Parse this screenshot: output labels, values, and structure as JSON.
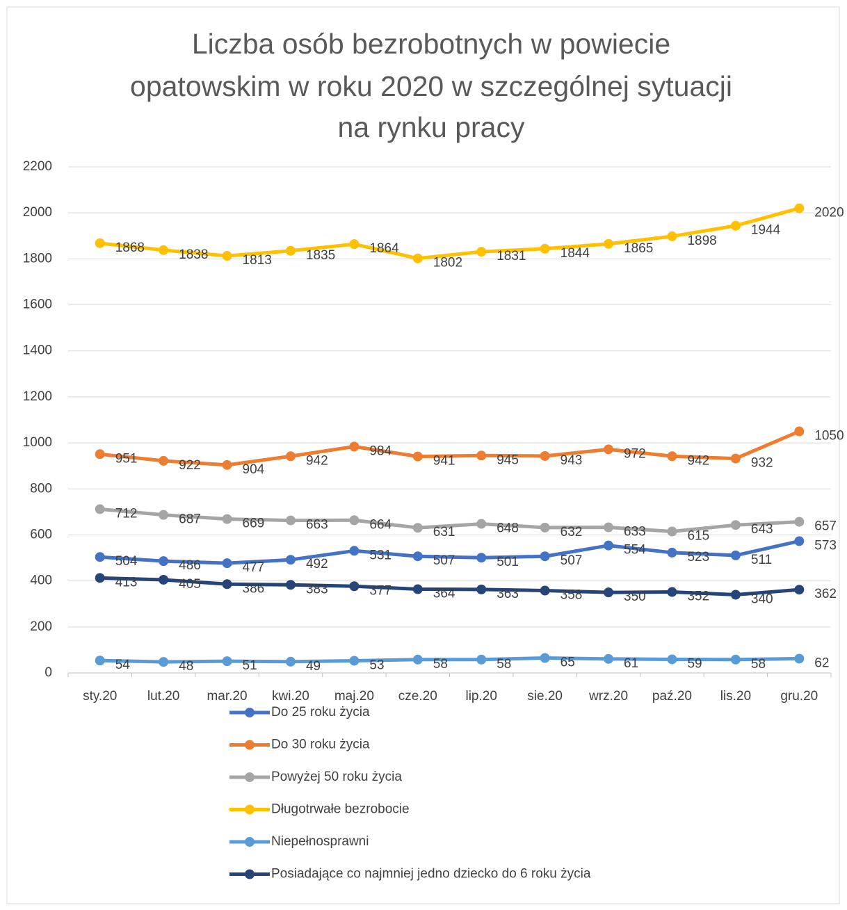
{
  "chart_data": {
    "type": "line",
    "title": [
      "Liczba osób bezrobotnych w powiecie",
      "opatowskim w roku 2020 w szczególnej sytuacji",
      "na rynku pracy"
    ],
    "categories": [
      "sty.20",
      "lut.20",
      "mar.20",
      "kwi.20",
      "maj.20",
      "cze.20",
      "lip.20",
      "sie.20",
      "wrz.20",
      "paź.20",
      "lis.20",
      "gru.20"
    ],
    "series": [
      {
        "name": "Do 25 roku życia",
        "color": "#4472c4",
        "values": [
          504,
          486,
          477,
          492,
          531,
          507,
          501,
          507,
          554,
          523,
          511,
          573
        ]
      },
      {
        "name": "Do 30 roku życia",
        "color": "#ed7d31",
        "values": [
          951,
          922,
          904,
          942,
          984,
          941,
          945,
          943,
          972,
          942,
          932,
          1050
        ]
      },
      {
        "name": "Powyżej 50 roku życia",
        "color": "#a5a5a5",
        "values": [
          712,
          687,
          669,
          663,
          664,
          631,
          648,
          632,
          633,
          615,
          643,
          657
        ]
      },
      {
        "name": "Długotrwałe bezrobocie",
        "color": "#ffc000",
        "values": [
          1868,
          1838,
          1813,
          1835,
          1864,
          1802,
          1831,
          1844,
          1865,
          1898,
          1944,
          2020
        ]
      },
      {
        "name": "Niepełnosprawni",
        "color": "#5b9bd5",
        "values": [
          54,
          48,
          51,
          49,
          53,
          58,
          58,
          65,
          61,
          59,
          58,
          62
        ]
      },
      {
        "name": "Posiadające co najmniej jedno dziecko do 6 roku życia",
        "color": "#264478",
        "values": [
          413,
          405,
          386,
          383,
          377,
          364,
          363,
          358,
          350,
          352,
          340,
          362
        ]
      }
    ],
    "ylim": [
      0,
      2200
    ],
    "yticks": [
      0,
      200,
      400,
      600,
      800,
      1000,
      1200,
      1400,
      1600,
      1800,
      2000,
      2200
    ],
    "grid": true
  }
}
